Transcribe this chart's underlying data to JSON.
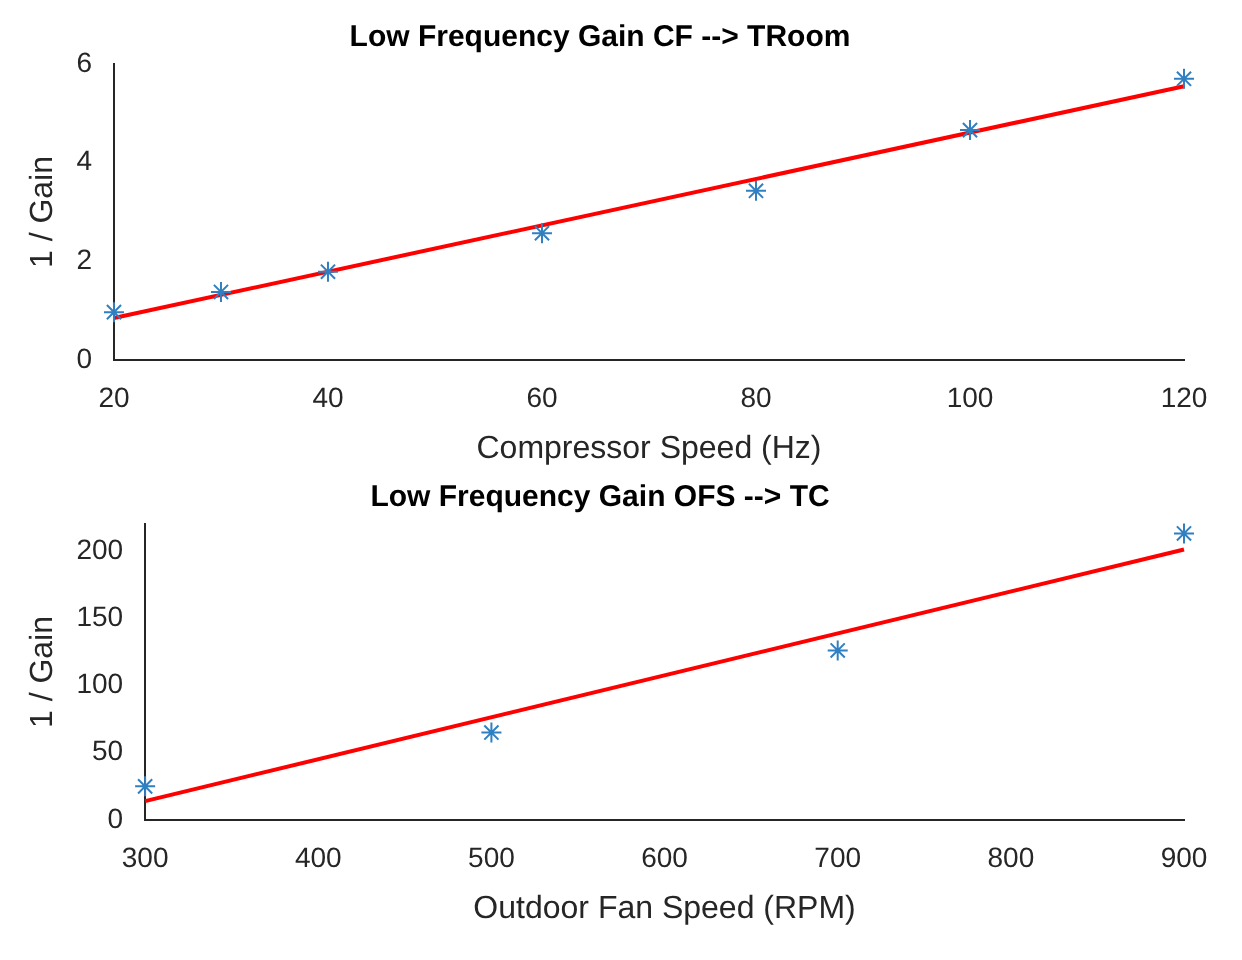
{
  "chart_data": [
    {
      "type": "scatter",
      "title": "Low Frequency Gain CF --> TRoom",
      "xlabel": "Compressor Speed (Hz)",
      "ylabel": "1 / Gain",
      "grid": false,
      "legend": false,
      "xlim": [
        20,
        120
      ],
      "xticks": [
        20,
        40,
        60,
        80,
        100,
        120
      ],
      "ylim": [
        0,
        6
      ],
      "yticks": [
        0,
        2,
        4,
        6
      ],
      "series": [
        {
          "type": "scatter",
          "marker": "cross",
          "color": "#2f7fc1",
          "x": [
            20,
            30,
            40,
            60,
            80,
            100,
            120
          ],
          "values": [
            0.97,
            1.38,
            1.79,
            2.57,
            3.43,
            4.66,
            5.7
          ]
        },
        {
          "type": "line",
          "marker": "none",
          "color": "#ff0000",
          "x": [
            20,
            120
          ],
          "values": [
            0.85,
            5.55
          ]
        }
      ]
    },
    {
      "type": "scatter",
      "title": "Low Frequency Gain OFS --> TC",
      "xlabel": "Outdoor Fan Speed (RPM)",
      "ylabel": "1 / Gain",
      "grid": false,
      "legend": false,
      "xlim": [
        300,
        900
      ],
      "xticks": [
        300,
        400,
        500,
        600,
        700,
        800,
        900
      ],
      "ylim": [
        0,
        220
      ],
      "yticks": [
        0,
        50,
        100,
        150,
        200
      ],
      "series": [
        {
          "type": "scatter",
          "marker": "cross",
          "color": "#2f7fc1",
          "x": [
            300,
            500,
            700,
            900
          ],
          "values": [
            25,
            65,
            126,
            213
          ]
        },
        {
          "type": "line",
          "marker": "none",
          "color": "#ff0000",
          "x": [
            300,
            900
          ],
          "values": [
            14,
            201
          ]
        }
      ]
    }
  ]
}
